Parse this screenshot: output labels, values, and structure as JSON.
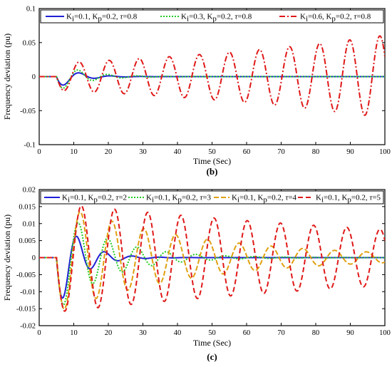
{
  "chart_data": [
    {
      "type": "line",
      "caption": "(b)",
      "xlabel": "Time (Sec)",
      "ylabel": "Frequency deviation (pu)",
      "xlim": [
        0,
        100
      ],
      "ylim": [
        -0.1,
        0.1
      ],
      "xticks": [
        0,
        10,
        20,
        30,
        40,
        50,
        60,
        70,
        80,
        90,
        100
      ],
      "yticks": [
        -0.1,
        -0.05,
        0,
        0.05,
        0.1
      ],
      "ytick_labels": [
        "-0.1",
        "-0.05",
        "0",
        "0.05",
        "0.1"
      ],
      "legend_position": "top",
      "disturbance_time": 5,
      "series": [
        {
          "legend": {
            "p1": "K",
            "s1": "i",
            "p2": "=0.1, K",
            "s2": "p",
            "p3": "=0.2, ",
            "tau": "τ",
            "p4": "=0.8"
          },
          "color": "#1f1fd6",
          "dash": "",
          "width": 2,
          "amplitude": 0.018,
          "decay": 0.18,
          "period": 9,
          "growth": 0
        },
        {
          "legend": {
            "p1": "K",
            "s1": "i",
            "p2": "=0.3, K",
            "s2": "p",
            "p3": "=0.2, ",
            "tau": "τ",
            "p4": "=0.8"
          },
          "color": "#22cc22",
          "dash": "2,2",
          "width": 2,
          "amplitude": 0.022,
          "decay": 0.13,
          "period": 8.5,
          "growth": 0
        },
        {
          "legend": {
            "p1": "K",
            "s1": "i",
            "p2": "=0.6, K",
            "s2": "p",
            "p3": "=0.2, ",
            "tau": "τ",
            "p4": "=0.8"
          },
          "color": "#e01818",
          "dash": "8,3,2,3",
          "width": 2,
          "amplitude": 0.02,
          "decay": 0,
          "period": 8.7,
          "growth": 0.0117
        }
      ]
    },
    {
      "type": "line",
      "caption": "(c)",
      "xlabel": "Time (Sec)",
      "ylabel": "Frequency deviation (pu)",
      "xlim": [
        0,
        100
      ],
      "ylim": [
        -0.02,
        0.02
      ],
      "xticks": [
        0,
        10,
        20,
        30,
        40,
        50,
        60,
        70,
        80,
        90,
        100
      ],
      "yticks": [
        -0.02,
        -0.015,
        -0.01,
        -0.005,
        0,
        0.005,
        0.01,
        0.015,
        0.02
      ],
      "ytick_labels": [
        "-0.02",
        "-0.015",
        "-0.01",
        "-0.005",
        "0",
        "0.005",
        "0.01",
        "0.015",
        "0.02"
      ],
      "legend_position": "top",
      "disturbance_time": 5,
      "series": [
        {
          "legend": {
            "p1": "K",
            "s1": "i",
            "p2": "=0.1, K",
            "s2": "p",
            "p3": "=0.2, ",
            "tau": "τ",
            "p4": "=2"
          },
          "color": "#1f1fd6",
          "dash": "",
          "width": 2,
          "amplitude": 0.016,
          "decay": 0.16,
          "period": 8,
          "growth": 0
        },
        {
          "legend": {
            "p1": "K",
            "s1": "i",
            "p2": "=0.1, K",
            "s2": "p",
            "p3": "=0.2, ",
            "tau": "τ",
            "p4": "=3"
          },
          "color": "#22cc22",
          "dash": "2,2",
          "width": 2,
          "amplitude": 0.016,
          "decay": 0.07,
          "period": 8.5,
          "growth": 0
        },
        {
          "legend": {
            "p1": "K",
            "s1": "i",
            "p2": "=0.1, K",
            "s2": "p",
            "p3": "=0.2, ",
            "tau": "τ",
            "p4": "=4"
          },
          "color": "#e0a010",
          "dash": "7,3",
          "width": 2,
          "amplitude": 0.016,
          "decay": 0.025,
          "period": 9.2,
          "growth": 0
        },
        {
          "legend": {
            "p1": "K",
            "s1": "i",
            "p2": "=0.1, K",
            "s2": "p",
            "p3": "=0.2, ",
            "tau": "τ",
            "p4": "=5"
          },
          "color": "#e01818",
          "dash": "7,4",
          "width": 2,
          "amplitude": 0.016,
          "decay": 0.007,
          "period": 9.6,
          "growth": 0
        }
      ]
    }
  ]
}
